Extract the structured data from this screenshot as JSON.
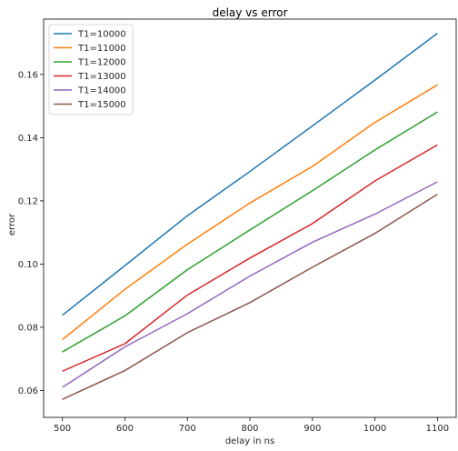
{
  "chart_data": {
    "type": "line",
    "title": "delay vs error",
    "xlabel": "delay in ns",
    "ylabel": "error",
    "x": [
      500,
      600,
      700,
      800,
      900,
      1000,
      1100
    ],
    "xticks": [
      500,
      600,
      700,
      800,
      900,
      1000,
      1100
    ],
    "yticks": [
      0.06,
      0.08,
      0.1,
      0.12,
      0.14,
      0.16
    ],
    "ytick_labels": [
      "0.06",
      "0.08",
      "0.10",
      "0.12",
      "0.14",
      "0.16"
    ],
    "xlim": [
      470,
      1130
    ],
    "ylim": [
      0.0515,
      0.1775
    ],
    "grid": false,
    "legend_position": "top-left",
    "series": [
      {
        "name": "T1=10000",
        "color": "#1f77b4",
        "values": [
          0.0838,
          0.0995,
          0.1153,
          0.1293,
          0.1437,
          0.1582,
          0.173
        ]
      },
      {
        "name": "T1=11000",
        "color": "#ff7f0e",
        "values": [
          0.0761,
          0.092,
          0.1063,
          0.1193,
          0.1309,
          0.1448,
          0.1567
        ]
      },
      {
        "name": "T1=12000",
        "color": "#2ca02c",
        "values": [
          0.0722,
          0.0836,
          0.0982,
          0.1108,
          0.1232,
          0.1361,
          0.1481
        ]
      },
      {
        "name": "T1=13000",
        "color": "#d62728",
        "values": [
          0.0661,
          0.0748,
          0.0902,
          0.1019,
          0.1128,
          0.1263,
          0.1377
        ]
      },
      {
        "name": "T1=14000",
        "color": "#9467bd",
        "values": [
          0.061,
          0.0738,
          0.0843,
          0.0962,
          0.1069,
          0.1158,
          0.126
        ]
      },
      {
        "name": "T1=15000",
        "color": "#8c564b",
        "values": [
          0.0572,
          0.0663,
          0.0783,
          0.0878,
          0.099,
          0.1097,
          0.1221
        ]
      }
    ]
  }
}
